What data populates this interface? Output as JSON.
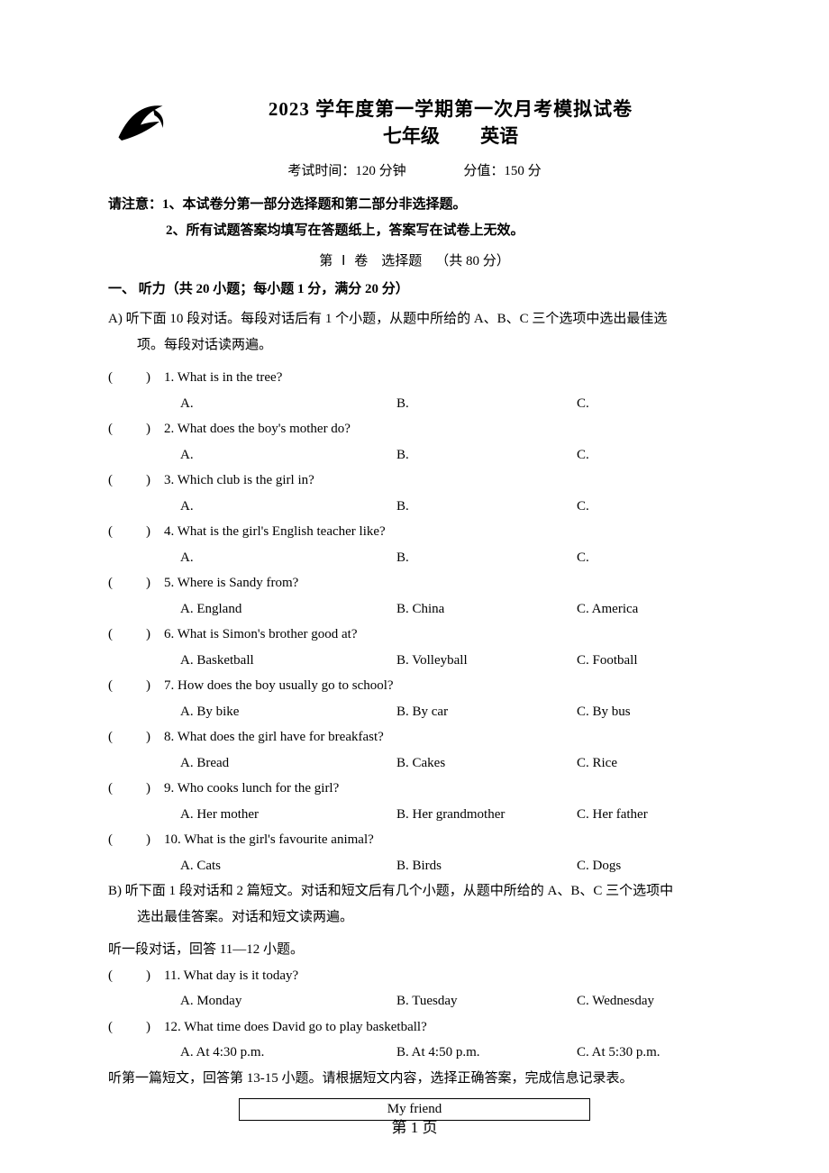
{
  "header": {
    "title_line1": "2023 学年度第一学期第一次月考模拟试卷",
    "grade": "七年级",
    "subject": "英语",
    "exam_time": "考试时间：120 分钟",
    "exam_score": "分值：150 分"
  },
  "notice": {
    "prefix": "请注意：",
    "line1": "1、本试卷分第一部分选择题和第二部分非选择题。",
    "line2": "2、所有试题答案均填写在答题纸上，答案写在试卷上无效。"
  },
  "part_header": {
    "di": "第",
    "roman": "Ⅰ",
    "juan": "卷",
    "label": "选择题",
    "points": "（共 80 分）"
  },
  "section1": {
    "header": "一、 听力（共 20 小题；每小题 1 分，满分 20 分）",
    "subA": "A) 听下面 10 段对话。每段对话后有 1 个小题，从题中所给的 A、B、C 三个选项中选出最佳选项。每段对话读两遍。",
    "subB": "B) 听下面 1 段对话和 2 篇短文。对话和短文后有几个小题，从题中所给的 A、B、C 三个选项中选出最佳答案。对话和短文读两遍。",
    "listen_dialog": "听一段对话，回答 11—12 小题。",
    "listen_passage": "听第一篇短文，回答第 13-15 小题。请根据短文内容，选择正确答案，完成信息记录表。"
  },
  "questions": [
    {
      "n": "1",
      "q": "What is in the tree?",
      "a": "A.",
      "b": "B.",
      "c": "C."
    },
    {
      "n": "2",
      "q": "What does the boy's mother do?",
      "a": "A.",
      "b": "B.",
      "c": "C."
    },
    {
      "n": "3",
      "q": "Which club is the girl in?",
      "a": "A.",
      "b": "B.",
      "c": "C."
    },
    {
      "n": "4",
      "q": "What is the girl's English teacher like?",
      "a": "A.",
      "b": "B.",
      "c": "C."
    },
    {
      "n": "5",
      "q": "Where is Sandy from?",
      "a": "A. England",
      "b": "B. China",
      "c": "C. America"
    },
    {
      "n": "6",
      "q": "What is Simon's brother good at?",
      "a": "A. Basketball",
      "b": "B. Volleyball",
      "c": "C. Football"
    },
    {
      "n": "7",
      "q": "How does the boy usually go to school?",
      "a": "A. By bike",
      "b": "B. By car",
      "c": "C. By bus"
    },
    {
      "n": "8",
      "q": "What does the girl have for breakfast?",
      "a": "A. Bread",
      "b": "B. Cakes",
      "c": "C. Rice"
    },
    {
      "n": "9",
      "q": "Who cooks lunch for the girl?",
      "a": "A. Her mother",
      "b": "B. Her grandmother",
      "c": "C. Her father"
    },
    {
      "n": "10",
      "q": "What is the girl's favourite animal?",
      "a": "A. Cats",
      "b": "B. Birds",
      "c": "C. Dogs"
    },
    {
      "n": "11",
      "q": "What day is it today?",
      "a": "A. Monday",
      "b": "B. Tuesday",
      "c": "C. Wednesday"
    },
    {
      "n": "12",
      "q": "What time does David go to play basketball?",
      "a": "A. At 4:30 p.m.",
      "b": "B. At 4:50 p.m.",
      "c": "C. At 5:30 p.m."
    }
  ],
  "table": {
    "caption": "My friend"
  },
  "footer": "第 1 页"
}
